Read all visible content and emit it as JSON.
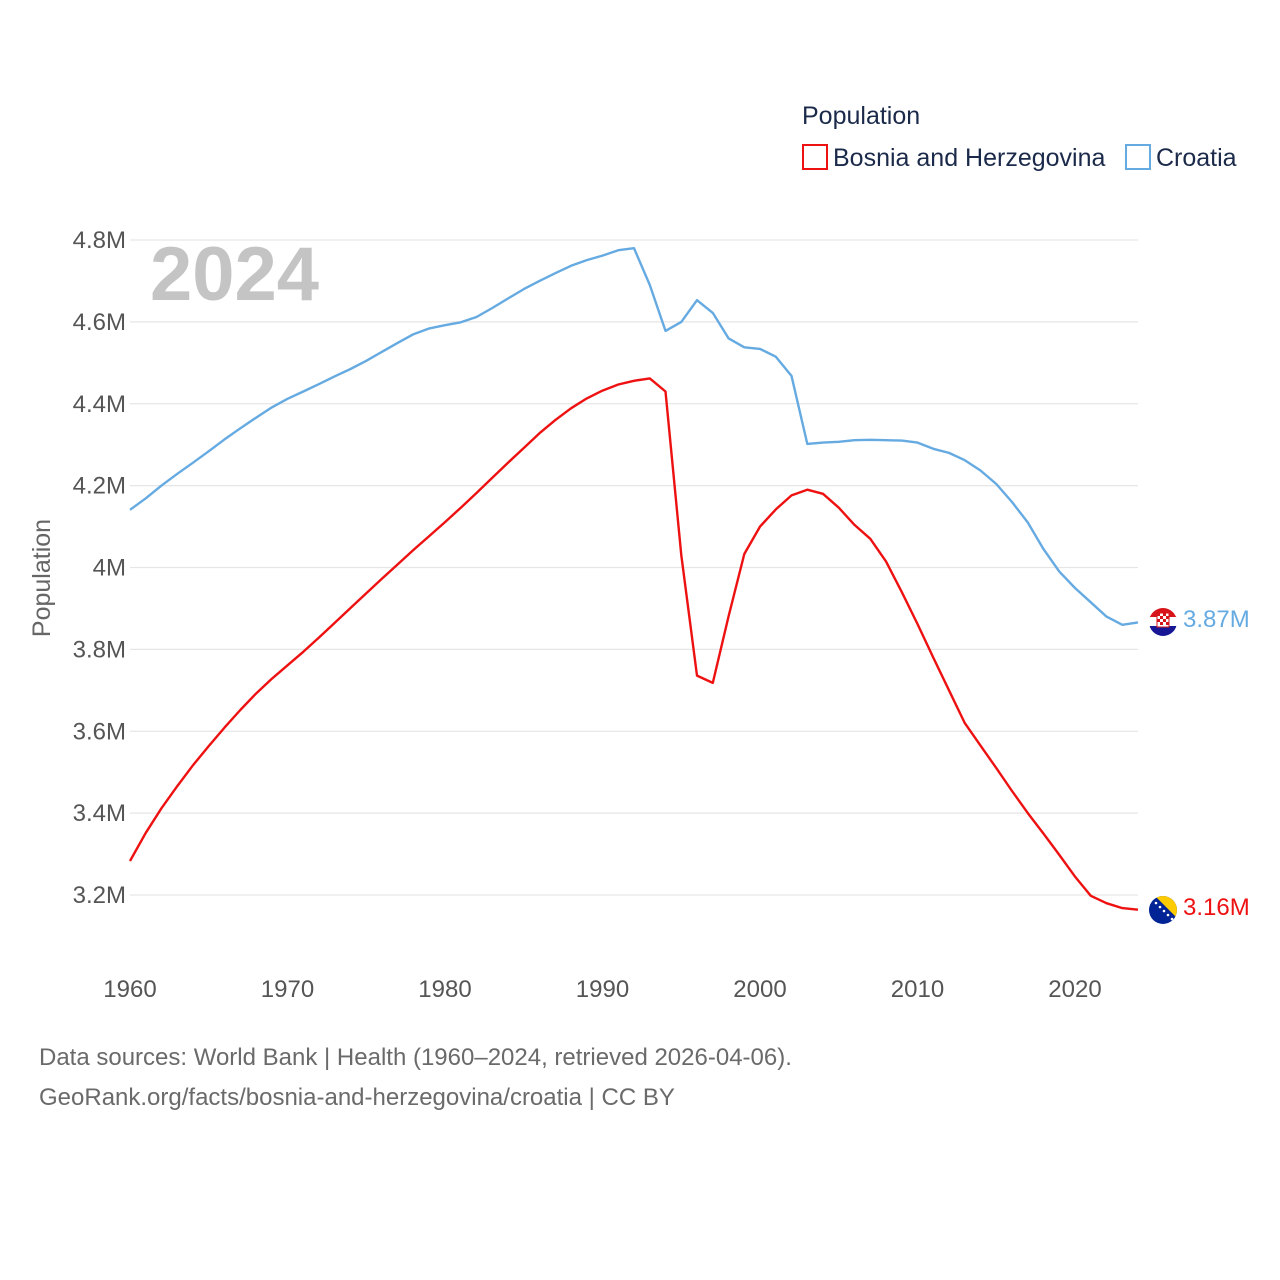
{
  "chart_data": {
    "type": "line",
    "title": "",
    "legend_title": "Population",
    "legend_position": "top-right",
    "year_label": "2024",
    "xlabel": "",
    "ylabel": "Population",
    "xlim": [
      1960,
      2024
    ],
    "ylim": [
      3.05,
      4.82
    ],
    "x_ticks": [
      {
        "value": 1960,
        "label": "1960"
      },
      {
        "value": 1970,
        "label": "1970"
      },
      {
        "value": 1980,
        "label": "1980"
      },
      {
        "value": 1990,
        "label": "1990"
      },
      {
        "value": 2000,
        "label": "2000"
      },
      {
        "value": 2010,
        "label": "2010"
      },
      {
        "value": 2020,
        "label": "2020"
      }
    ],
    "y_ticks": [
      {
        "value": 3.2,
        "label": "3.2M"
      },
      {
        "value": 3.4,
        "label": "3.4M"
      },
      {
        "value": 3.6,
        "label": "3.6M"
      },
      {
        "value": 3.8,
        "label": "3.8M"
      },
      {
        "value": 4.0,
        "label": "4M"
      },
      {
        "value": 4.2,
        "label": "4.2M"
      },
      {
        "value": 4.4,
        "label": "4.4M"
      },
      {
        "value": 4.6,
        "label": "4.6M"
      },
      {
        "value": 4.8,
        "label": "4.8M"
      }
    ],
    "grid": true,
    "unit": "millions",
    "x": [
      1960,
      1961,
      1962,
      1963,
      1964,
      1965,
      1966,
      1967,
      1968,
      1969,
      1970,
      1971,
      1972,
      1973,
      1974,
      1975,
      1976,
      1977,
      1978,
      1979,
      1980,
      1981,
      1982,
      1983,
      1984,
      1985,
      1986,
      1987,
      1988,
      1989,
      1990,
      1991,
      1992,
      1993,
      1994,
      1995,
      1996,
      1997,
      1998,
      1999,
      2000,
      2001,
      2002,
      2003,
      2004,
      2005,
      2006,
      2007,
      2008,
      2009,
      2010,
      2011,
      2012,
      2013,
      2014,
      2015,
      2016,
      2017,
      2018,
      2019,
      2020,
      2021,
      2022,
      2023,
      2024
    ],
    "series": [
      {
        "name": "Bosnia and Herzegovina",
        "color": "#ee1111",
        "end_label": "3.16M",
        "flag": "bosnia-flag-icon",
        "values": [
          3.283,
          3.352,
          3.412,
          3.466,
          3.517,
          3.564,
          3.609,
          3.652,
          3.692,
          3.728,
          3.761,
          3.794,
          3.829,
          3.865,
          3.901,
          3.937,
          3.973,
          4.008,
          4.043,
          4.077,
          4.111,
          4.146,
          4.182,
          4.219,
          4.256,
          4.292,
          4.328,
          4.36,
          4.389,
          4.413,
          4.432,
          4.447,
          4.456,
          4.462,
          4.43,
          4.03,
          3.736,
          3.718,
          3.88,
          4.033,
          4.1,
          4.142,
          4.176,
          4.19,
          4.18,
          4.146,
          4.104,
          4.07,
          4.015,
          3.94,
          3.862,
          3.78,
          3.7,
          3.62,
          3.565,
          3.51,
          3.454,
          3.4,
          3.35,
          3.298,
          3.245,
          3.198,
          3.18,
          3.168,
          3.164
        ]
      },
      {
        "name": "Croatia",
        "color": "#66aae2",
        "end_label": "3.87M",
        "flag": "croatia-flag-icon",
        "values": [
          4.141,
          4.169,
          4.2,
          4.229,
          4.256,
          4.284,
          4.313,
          4.34,
          4.366,
          4.391,
          4.412,
          4.43,
          4.448,
          4.467,
          4.485,
          4.505,
          4.527,
          4.549,
          4.57,
          4.584,
          4.592,
          4.599,
          4.612,
          4.634,
          4.657,
          4.68,
          4.7,
          4.719,
          4.737,
          4.751,
          4.762,
          4.775,
          4.78,
          4.69,
          4.578,
          4.6,
          4.653,
          4.622,
          4.56,
          4.538,
          4.534,
          4.515,
          4.468,
          4.302,
          4.305,
          4.307,
          4.311,
          4.312,
          4.311,
          4.31,
          4.305,
          4.29,
          4.28,
          4.262,
          4.237,
          4.204,
          4.16,
          4.11,
          4.045,
          3.99,
          3.95,
          3.915,
          3.88,
          3.86,
          3.866
        ]
      }
    ]
  },
  "footer": {
    "line1": "Data sources: World Bank | Health (1960–2024, retrieved 2026-04-06).",
    "line2": "GeoRank.org/facts/bosnia-and-herzegovina/croatia | CC BY"
  }
}
